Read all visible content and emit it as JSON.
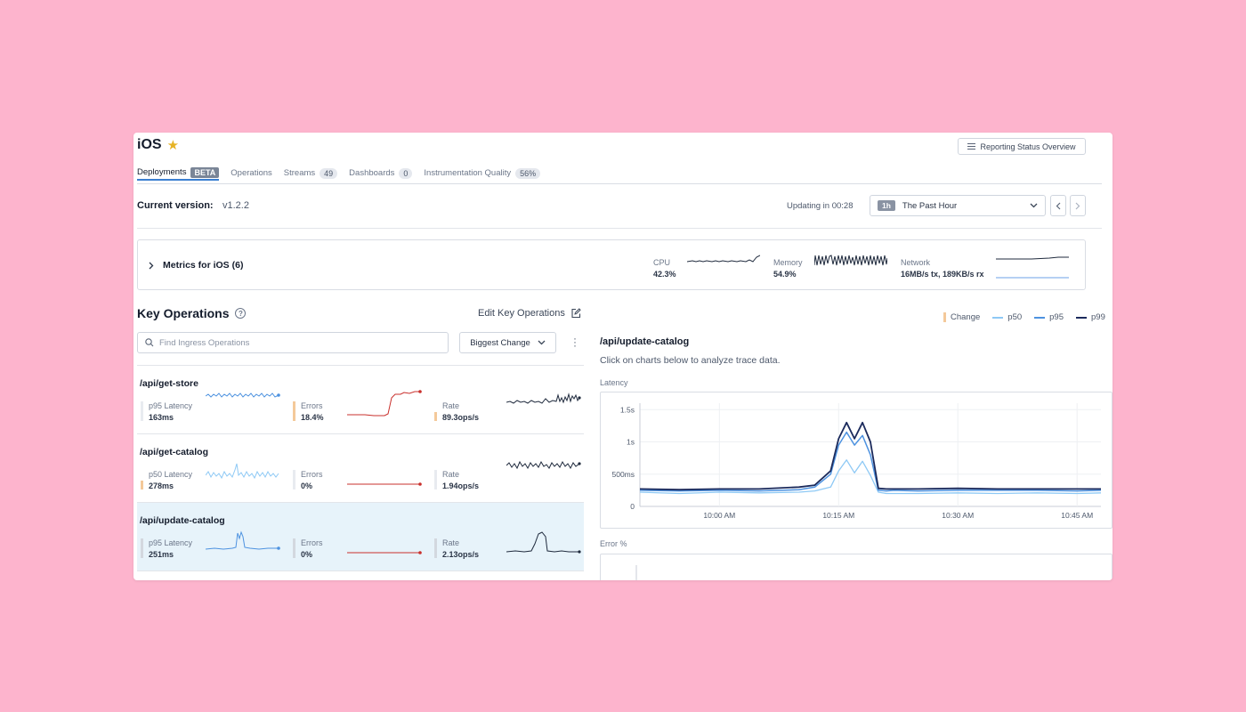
{
  "header": {
    "title": "iOS",
    "report_button": "Reporting Status Overview"
  },
  "tabs": [
    {
      "label": "Deployments",
      "badge": "BETA"
    },
    {
      "label": "Operations",
      "badge": ""
    },
    {
      "label": "Streams",
      "badge": "49"
    },
    {
      "label": "Dashboards",
      "badge": "0"
    },
    {
      "label": "Instrumentation Quality",
      "badge": "56%"
    }
  ],
  "version": {
    "label": "Current version:",
    "value": "v1.2.2",
    "updating": "Updating in 00:28",
    "range_badge": "1h",
    "range_label": "The Past Hour"
  },
  "metrics": {
    "title": "Metrics for iOS (6)",
    "cpu": {
      "name": "CPU",
      "value": "42.3%"
    },
    "memory": {
      "name": "Memory",
      "value": "54.9%"
    },
    "network": {
      "name": "Network",
      "value": "16MB/s tx, 189KB/s rx"
    }
  },
  "key_operations": {
    "title": "Key Operations",
    "edit_label": "Edit Key Operations",
    "search_placeholder": "Find Ingress Operations",
    "sort_label": "Biggest Change",
    "operations": [
      {
        "name": "/api/get-store",
        "latency_label": "p95 Latency",
        "latency_value": "163ms",
        "errors_label": "Errors",
        "errors_value": "18.4%",
        "rate_label": "Rate",
        "rate_value": "89.3ops/s"
      },
      {
        "name": "/api/get-catalog",
        "latency_label": "p50 Latency",
        "latency_value": "278ms",
        "errors_label": "Errors",
        "errors_value": "0%",
        "rate_label": "Rate",
        "rate_value": "1.94ops/s"
      },
      {
        "name": "/api/update-catalog",
        "latency_label": "p95 Latency",
        "latency_value": "251ms",
        "errors_label": "Errors",
        "errors_value": "0%",
        "rate_label": "Rate",
        "rate_value": "2.13ops/s"
      }
    ]
  },
  "detail": {
    "legend": {
      "change": "Change",
      "p50": "p50",
      "p95": "p95",
      "p99": "p99"
    },
    "title": "/api/update-catalog",
    "hint": "Click on charts below to analyze trace data.",
    "latency_label": "Latency",
    "error_label": "Error %"
  },
  "colors": {
    "accent": "#3b7fd1",
    "p50": "#8ec9f5",
    "p95": "#4d92e0",
    "p99": "#1b2a5c",
    "change": "#f4c99a",
    "error_line": "#c9302c",
    "selected_row": "#e7f3fa"
  },
  "chart_data": {
    "type": "line",
    "x": [
      "09:50",
      "09:55",
      "10:00",
      "10:05",
      "10:10",
      "10:12",
      "10:14",
      "10:15",
      "10:16",
      "10:17",
      "10:18",
      "10:19",
      "10:20",
      "10:21",
      "10:22",
      "10:25",
      "10:30",
      "10:35",
      "10:40",
      "10:45",
      "10:48"
    ],
    "x_tick_labels": [
      "10:00 AM",
      "10:15 AM",
      "10:30 AM",
      "10:45 AM"
    ],
    "y_tick_labels": [
      "0",
      "500ms",
      "1s",
      "1.5s"
    ],
    "ylim": [
      0,
      1.6
    ],
    "y_unit": "s",
    "series": [
      {
        "name": "p50",
        "values": [
          0.22,
          0.2,
          0.22,
          0.21,
          0.22,
          0.24,
          0.3,
          0.55,
          0.72,
          0.52,
          0.7,
          0.48,
          0.22,
          0.2,
          0.2,
          0.2,
          0.21,
          0.2,
          0.21,
          0.2,
          0.21
        ]
      },
      {
        "name": "p95",
        "values": [
          0.25,
          0.24,
          0.25,
          0.24,
          0.26,
          0.3,
          0.5,
          0.95,
          1.15,
          0.95,
          1.1,
          0.8,
          0.25,
          0.24,
          0.25,
          0.24,
          0.25,
          0.25,
          0.25,
          0.24,
          0.25
        ]
      },
      {
        "name": "p99",
        "values": [
          0.27,
          0.26,
          0.27,
          0.27,
          0.3,
          0.33,
          0.55,
          1.05,
          1.3,
          1.05,
          1.3,
          1.0,
          0.28,
          0.27,
          0.27,
          0.27,
          0.28,
          0.27,
          0.27,
          0.27,
          0.27
        ]
      }
    ]
  }
}
